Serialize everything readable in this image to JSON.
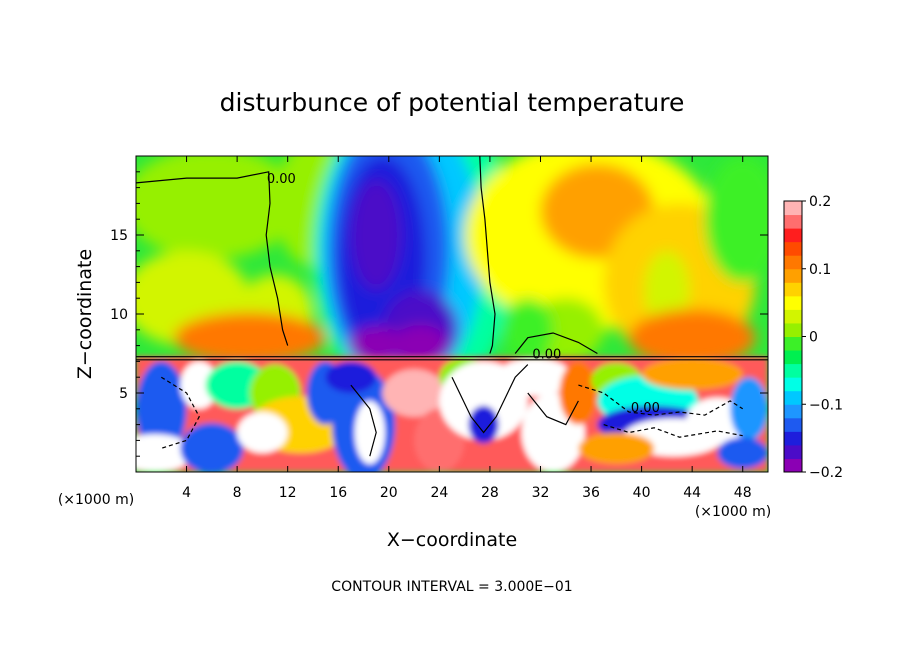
{
  "chart_data": {
    "type": "heatmap",
    "title": "disturbunce of potential temperature",
    "xlabel": "X−coordinate",
    "ylabel": "Z−coordinate",
    "x_unit": "(×1000 m)",
    "x_unit_right": "(×1000 m)",
    "footer": "CONTOUR INTERVAL = 3.000E−01",
    "xlim": [
      0,
      50
    ],
    "ylim": [
      0,
      20
    ],
    "xticks": [
      4,
      8,
      12,
      16,
      20,
      24,
      28,
      32,
      36,
      40,
      44,
      48
    ],
    "yticks": [
      5,
      10,
      15
    ],
    "colorbar": {
      "min": -0.2,
      "max": 0.2,
      "ticks": [
        {
          "value": 0.2,
          "label": "0.2"
        },
        {
          "value": 0.1,
          "label": "0.1"
        },
        {
          "value": 0,
          "label": "0"
        },
        {
          "value": -0.1,
          "label": "−0.1"
        },
        {
          "value": -0.2,
          "label": "−0.2"
        }
      ],
      "colors": [
        "#8b00b4",
        "#4b0cc8",
        "#1e1edc",
        "#1e5af0",
        "#1e96ff",
        "#00c8ff",
        "#00ffe6",
        "#00ffa0",
        "#00f050",
        "#3cf028",
        "#96f000",
        "#d2f500",
        "#ffff00",
        "#ffd200",
        "#ffa000",
        "#ff7800",
        "#ff4b00",
        "#ff1e1e",
        "#ff6e6e",
        "#ffb4b4"
      ]
    },
    "contour_labels": [
      {
        "x": 11.5,
        "z": 18.6,
        "text": "0.00"
      },
      {
        "x": 32.5,
        "z": 7.5,
        "text": "0.00"
      },
      {
        "x": 40.3,
        "z": 4.1,
        "text": "0.00"
      }
    ],
    "layer_boundary_z": 7.3
  }
}
